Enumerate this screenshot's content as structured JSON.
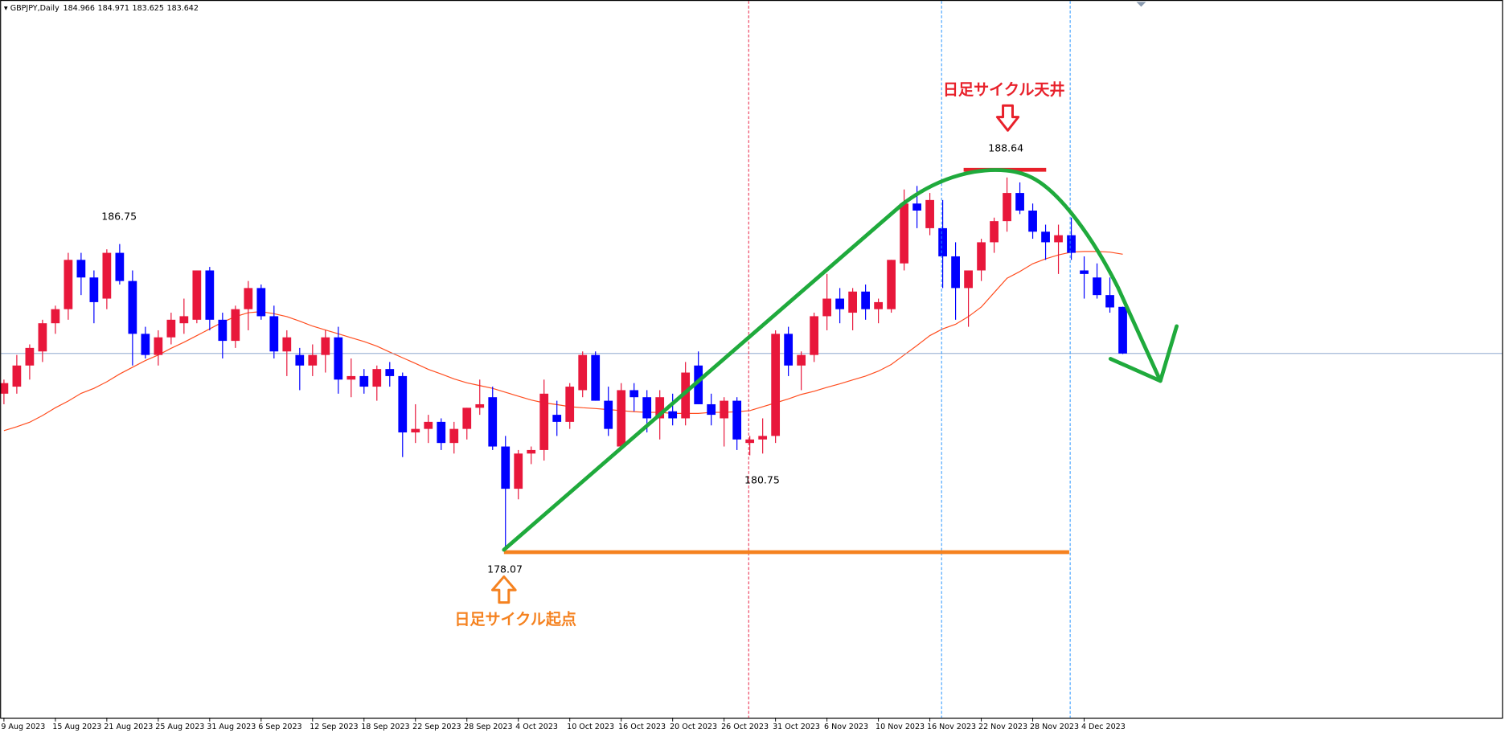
{
  "chart_data": {
    "type": "candlestick",
    "title": "GBPJPY,Daily",
    "categories": [
      "9 Aug 2023",
      null,
      null,
      null,
      "15 Aug 2023",
      null,
      null,
      null,
      "21 Aug 2023",
      null,
      null,
      null,
      "25 Aug 2023",
      null,
      null,
      null,
      "31 Aug 2023",
      null,
      null,
      null,
      "6 Sep 2023",
      null,
      null,
      null,
      "12 Sep 2023",
      null,
      null,
      null,
      "18 Sep 2023",
      null,
      null,
      null,
      "22 Sep 2023",
      null,
      null,
      null,
      "28 Sep 2023",
      null,
      null,
      null,
      "4 Oct 2023",
      null,
      null,
      null,
      "10 Oct 2023",
      null,
      null,
      null,
      "16 Oct 2023",
      null,
      null,
      null,
      "20 Oct 2023",
      null,
      null,
      null,
      "26 Oct 2023",
      null,
      null,
      null,
      "31 Oct 2023",
      null,
      null,
      null,
      "6 Nov 2023",
      null,
      null,
      null,
      "10 Nov 2023",
      null,
      null,
      null,
      "16 Nov 2023",
      null,
      null,
      null,
      "22 Nov 2023",
      null,
      null,
      null,
      "28 Nov 2023",
      null,
      null,
      null,
      "4 Dec 2023",
      null,
      null,
      null
    ],
    "open": [
      182.5,
      182.7,
      183.3,
      183.7,
      184.5,
      184.9,
      186.3,
      185.8,
      185.2,
      186.5,
      185.7,
      184.2,
      183.6,
      184.1,
      184.5,
      184.6,
      186.0,
      184.6,
      184.0,
      184.9,
      185.5,
      184.7,
      183.7,
      183.6,
      183.3,
      183.6,
      184.1,
      182.9,
      183.0,
      182.7,
      183.2,
      183.0,
      181.4,
      181.5,
      181.7,
      181.1,
      181.5,
      182.1,
      182.4,
      181.0,
      179.8,
      180.8,
      180.9,
      181.9,
      181.7,
      182.6,
      183.6,
      182.3,
      181.0,
      182.6,
      182.4,
      181.8,
      182.0,
      181.8,
      183.3,
      182.2,
      181.8,
      182.3,
      181.1,
      181.2,
      181.3,
      184.2,
      183.3,
      183.6,
      184.7,
      185.2,
      184.8,
      185.4,
      184.9,
      184.9,
      186.2,
      187.9,
      187.2,
      187.2,
      186.4,
      185.5,
      186.0,
      186.8,
      187.4,
      188.2,
      187.7,
      187.1,
      186.8,
      187.0,
      186.0,
      185.8,
      185.3,
      184.966
    ],
    "high": [
      182.9,
      183.6,
      183.9,
      184.6,
      185.0,
      186.5,
      186.5,
      186.0,
      186.6,
      186.75,
      186.0,
      184.4,
      184.3,
      184.8,
      185.2,
      186.0,
      186.1,
      184.8,
      185.0,
      185.7,
      185.6,
      185.0,
      184.3,
      183.8,
      183.9,
      184.3,
      184.4,
      183.5,
      183.2,
      183.3,
      183.4,
      183.1,
      182.2,
      181.9,
      181.8,
      181.7,
      182.1,
      182.9,
      182.7,
      181.3,
      180.9,
      181.0,
      182.9,
      182.3,
      182.8,
      183.7,
      183.7,
      182.7,
      182.8,
      182.8,
      182.6,
      182.6,
      182.5,
      183.4,
      183.7,
      182.5,
      182.4,
      182.4,
      181.3,
      181.8,
      184.3,
      184.4,
      183.7,
      184.8,
      185.9,
      185.5,
      185.5,
      185.6,
      185.2,
      186.3,
      188.3,
      188.4,
      188.2,
      188.0,
      186.8,
      186.0,
      186.9,
      187.5,
      188.64,
      188.5,
      187.9,
      187.3,
      187.3,
      187.5,
      186.4,
      186.2,
      185.8,
      184.971
    ],
    "low": [
      182.2,
      182.5,
      182.9,
      183.4,
      184.2,
      184.6,
      185.3,
      184.5,
      184.9,
      185.6,
      183.3,
      183.5,
      183.3,
      183.9,
      184.2,
      184.5,
      184.3,
      183.5,
      183.8,
      184.3,
      184.6,
      183.5,
      183.0,
      182.6,
      183.0,
      183.1,
      182.5,
      182.4,
      182.5,
      182.3,
      182.7,
      180.7,
      181.1,
      181.1,
      180.9,
      180.8,
      181.2,
      181.9,
      180.9,
      178.07,
      179.5,
      180.5,
      180.6,
      181.3,
      181.5,
      182.4,
      182.3,
      181.3,
      180.9,
      182.0,
      181.4,
      181.2,
      181.6,
      181.6,
      182.2,
      181.6,
      181.0,
      180.9,
      180.75,
      180.8,
      181.1,
      183.0,
      182.6,
      183.4,
      184.3,
      184.5,
      184.3,
      184.6,
      184.5,
      184.8,
      186.0,
      187.2,
      187.0,
      185.5,
      184.6,
      184.4,
      185.7,
      186.5,
      187.1,
      187.6,
      186.9,
      186.3,
      185.9,
      186.3,
      185.2,
      185.2,
      184.8,
      183.625
    ],
    "close": [
      182.8,
      183.3,
      183.8,
      184.5,
      184.9,
      186.3,
      185.8,
      185.1,
      186.5,
      185.7,
      184.2,
      183.6,
      184.1,
      184.6,
      184.7,
      186.0,
      184.6,
      184.0,
      184.9,
      185.5,
      184.7,
      183.7,
      184.1,
      183.3,
      183.6,
      184.1,
      182.9,
      183.0,
      182.7,
      183.2,
      183.0,
      181.4,
      181.5,
      181.7,
      181.1,
      181.5,
      182.1,
      182.2,
      181.0,
      179.8,
      180.8,
      180.9,
      182.5,
      181.7,
      182.7,
      183.6,
      182.3,
      181.5,
      182.6,
      182.4,
      181.8,
      182.4,
      181.8,
      183.1,
      182.2,
      181.9,
      182.3,
      181.2,
      181.2,
      181.3,
      184.2,
      183.3,
      183.6,
      184.7,
      185.2,
      184.9,
      185.4,
      184.9,
      185.1,
      186.3,
      187.9,
      187.7,
      188.0,
      186.4,
      185.5,
      186.0,
      186.8,
      187.4,
      188.2,
      187.7,
      187.1,
      186.8,
      187.0,
      186.5,
      185.9,
      185.3,
      184.95,
      183.642
    ],
    "up_color": "#e8173b",
    "down_color": "#0000ff",
    "ma": {
      "color": "#ff4d1f",
      "values": [
        181.45,
        181.56,
        181.69,
        181.88,
        182.1,
        182.29,
        182.51,
        182.65,
        182.84,
        183.06,
        183.25,
        183.44,
        183.6,
        183.79,
        183.96,
        184.15,
        184.34,
        184.53,
        184.69,
        184.8,
        184.83,
        184.77,
        184.69,
        184.56,
        184.42,
        184.31,
        184.2,
        184.09,
        183.98,
        183.85,
        183.68,
        183.52,
        183.36,
        183.19,
        183.06,
        182.92,
        182.81,
        182.73,
        182.65,
        182.54,
        182.43,
        182.32,
        182.24,
        182.19,
        182.13,
        182.1,
        182.08,
        182.05,
        182.02,
        181.99,
        181.97,
        181.97,
        181.94,
        181.94,
        181.94,
        181.97,
        181.97,
        181.99,
        182.02,
        182.13,
        182.24,
        182.35,
        182.48,
        182.57,
        182.68,
        182.78,
        182.89,
        183.0,
        183.14,
        183.33,
        183.6,
        183.87,
        184.15,
        184.34,
        184.47,
        184.69,
        184.96,
        185.37,
        185.78,
        185.97,
        186.19,
        186.33,
        186.44,
        186.52,
        186.54,
        186.54,
        186.52,
        186.46
      ]
    },
    "current_line_color": "#7f9cc6",
    "ylim": [
      173.3,
      193.68
    ],
    "annotations": [
      "日足サイクル天井",
      "日足サイクル起点"
    ]
  }
}
